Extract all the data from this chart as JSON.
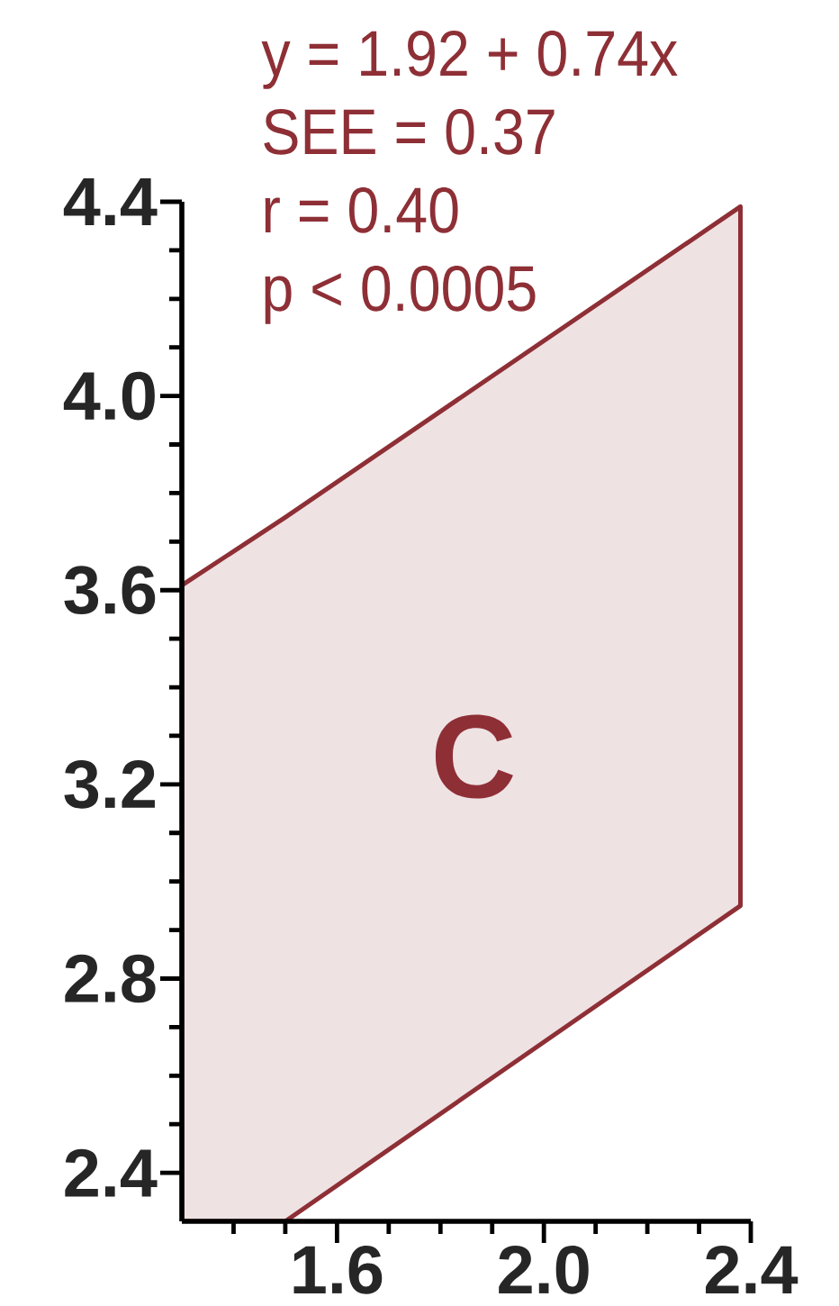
{
  "chart_data": {
    "type": "area",
    "annotations": [
      "y = 1.92 + 0.74x",
      "SEE = 0.37",
      "r = 0.40",
      "p < 0.0005",
      "C"
    ],
    "series": [
      {
        "color": "#8e2f36",
        "x": [
          1.3,
          1.5,
          2.38
        ],
        "values": [
          null,
          null,
          null
        ],
        "lower": [
          2.3,
          2.3,
          2.95
        ],
        "upper": [
          3.61,
          3.75,
          4.39
        ]
      }
    ],
    "xlim": [
      1.3,
      2.4
    ],
    "xticks": [
      {
        "value": 1.4,
        "label": null
      },
      {
        "value": 1.5,
        "label": null
      },
      1.6,
      {
        "value": 1.7,
        "label": null
      },
      {
        "value": 1.8,
        "label": null
      },
      {
        "value": 1.9,
        "label": null
      },
      {
        "value": 2,
        "label": "2.0"
      },
      {
        "value": 2.1,
        "label": null
      },
      {
        "value": 2.2,
        "label": null
      },
      {
        "value": 2.3,
        "label": null
      },
      2.4
    ],
    "ylim": [
      2.3,
      4.4
    ],
    "yticks": [
      2.4,
      {
        "value": 2.5,
        "label": null
      },
      {
        "value": 2.6,
        "label": null
      },
      {
        "value": 2.7,
        "label": null
      },
      2.8,
      {
        "value": 2.9,
        "label": null
      },
      {
        "value": 3,
        "label": null
      },
      {
        "value": 3.1,
        "label": null
      },
      3.2,
      {
        "value": 3.3,
        "label": null
      },
      {
        "value": 3.4,
        "label": null
      },
      {
        "value": 3.5,
        "label": null
      },
      3.6,
      {
        "value": 3.7,
        "label": null
      },
      {
        "value": 3.8,
        "label": null
      },
      {
        "value": 3.9,
        "label": null
      },
      {
        "value": 4,
        "label": "4.0"
      },
      {
        "value": 4.1,
        "label": null
      },
      {
        "value": 4.2,
        "label": null
      },
      {
        "value": 4.3,
        "label": null
      },
      4.4
    ]
  }
}
